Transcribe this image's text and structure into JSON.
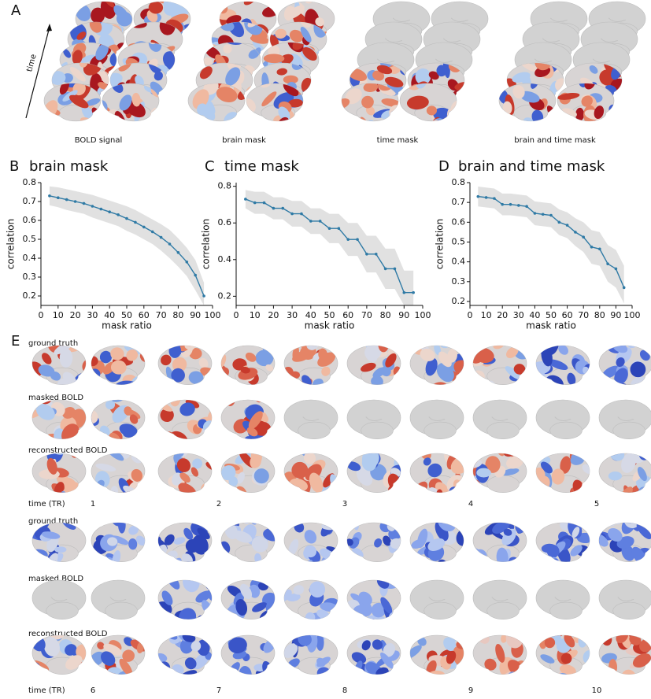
{
  "panel_a": {
    "label": "A",
    "time_axis": "time",
    "captions": [
      "BOLD signal",
      "brain mask",
      "time mask",
      "brain and time mask"
    ]
  },
  "chart_data": [
    {
      "type": "line",
      "label": "B",
      "title": "brain mask",
      "x_label": "mask ratio",
      "y_label": "correlation",
      "x": [
        5,
        10,
        15,
        20,
        25,
        30,
        35,
        40,
        45,
        50,
        55,
        60,
        65,
        70,
        75,
        80,
        85,
        90,
        95
      ],
      "series": [
        {
          "color": "#2f7aa5",
          "values": [
            0.73,
            0.72,
            0.71,
            0.7,
            0.69,
            0.675,
            0.66,
            0.645,
            0.63,
            0.61,
            0.59,
            0.565,
            0.54,
            0.51,
            0.475,
            0.43,
            0.38,
            0.31,
            0.2
          ],
          "upper": [
            0.78,
            0.775,
            0.765,
            0.755,
            0.745,
            0.735,
            0.72,
            0.705,
            0.69,
            0.675,
            0.655,
            0.63,
            0.605,
            0.58,
            0.55,
            0.505,
            0.455,
            0.39,
            0.27
          ],
          "lower": [
            0.68,
            0.67,
            0.655,
            0.645,
            0.635,
            0.615,
            0.6,
            0.585,
            0.57,
            0.545,
            0.525,
            0.5,
            0.475,
            0.44,
            0.4,
            0.355,
            0.305,
            0.23,
            0.15
          ]
        }
      ],
      "xlim": [
        0,
        100
      ],
      "xticks": [
        0,
        10,
        20,
        30,
        40,
        50,
        60,
        70,
        80,
        90,
        100
      ],
      "ylim": [
        0.15,
        0.8
      ],
      "yticks": [
        0.2,
        0.3,
        0.4,
        0.5,
        0.6,
        0.7,
        0.8
      ]
    },
    {
      "type": "line",
      "label": "C",
      "title": "time mask",
      "x_label": "mask ratio",
      "y_label": "correlation",
      "x": [
        5,
        10,
        15,
        20,
        25,
        30,
        35,
        40,
        45,
        50,
        55,
        60,
        65,
        70,
        75,
        80,
        85,
        90,
        95
      ],
      "series": [
        {
          "color": "#2f7aa5",
          "values": [
            0.73,
            0.71,
            0.71,
            0.68,
            0.68,
            0.65,
            0.65,
            0.61,
            0.61,
            0.57,
            0.57,
            0.51,
            0.51,
            0.43,
            0.43,
            0.35,
            0.35,
            0.22,
            0.22
          ],
          "upper": [
            0.78,
            0.77,
            0.77,
            0.74,
            0.74,
            0.72,
            0.72,
            0.68,
            0.68,
            0.65,
            0.65,
            0.6,
            0.6,
            0.53,
            0.53,
            0.46,
            0.46,
            0.34,
            0.34
          ],
          "lower": [
            0.68,
            0.65,
            0.65,
            0.62,
            0.62,
            0.58,
            0.58,
            0.54,
            0.54,
            0.49,
            0.49,
            0.42,
            0.42,
            0.33,
            0.33,
            0.24,
            0.24,
            0.15,
            0.15
          ]
        }
      ],
      "xlim": [
        0,
        100
      ],
      "xticks": [
        0,
        10,
        20,
        30,
        40,
        50,
        60,
        70,
        80,
        90,
        100
      ],
      "ylim": [
        0.15,
        0.82
      ],
      "yticks": [
        0.2,
        0.4,
        0.6,
        0.8
      ]
    },
    {
      "type": "line",
      "label": "D",
      "title": "brain and time mask",
      "x_label": "mask ratio",
      "y_label": "correlation",
      "x": [
        5,
        10,
        15,
        20,
        25,
        30,
        35,
        40,
        45,
        50,
        55,
        60,
        65,
        70,
        75,
        80,
        85,
        90,
        95
      ],
      "series": [
        {
          "color": "#2f7aa5",
          "values": [
            0.73,
            0.725,
            0.72,
            0.69,
            0.69,
            0.685,
            0.68,
            0.645,
            0.64,
            0.635,
            0.6,
            0.585,
            0.55,
            0.525,
            0.475,
            0.465,
            0.39,
            0.365,
            0.27
          ],
          "upper": [
            0.78,
            0.775,
            0.77,
            0.745,
            0.745,
            0.74,
            0.735,
            0.705,
            0.7,
            0.695,
            0.665,
            0.65,
            0.62,
            0.6,
            0.56,
            0.55,
            0.485,
            0.46,
            0.38
          ],
          "lower": [
            0.68,
            0.675,
            0.67,
            0.635,
            0.635,
            0.63,
            0.625,
            0.585,
            0.58,
            0.575,
            0.535,
            0.52,
            0.48,
            0.45,
            0.39,
            0.38,
            0.3,
            0.27,
            0.19
          ]
        }
      ],
      "xlim": [
        0,
        100
      ],
      "xticks": [
        0,
        10,
        20,
        30,
        40,
        50,
        60,
        70,
        80,
        90,
        100
      ],
      "ylim": [
        0.18,
        0.8
      ],
      "yticks": [
        0.2,
        0.3,
        0.4,
        0.5,
        0.6,
        0.7,
        0.8
      ]
    }
  ],
  "panel_e": {
    "label": "E",
    "rows": [
      "ground truth",
      "masked BOLD",
      "reconstructed BOLD"
    ],
    "time_label": "time (TR)",
    "blocks": [
      {
        "times": [
          1,
          2,
          3,
          4,
          5
        ]
      },
      {
        "times": [
          6,
          7,
          8,
          9,
          10
        ]
      }
    ]
  }
}
